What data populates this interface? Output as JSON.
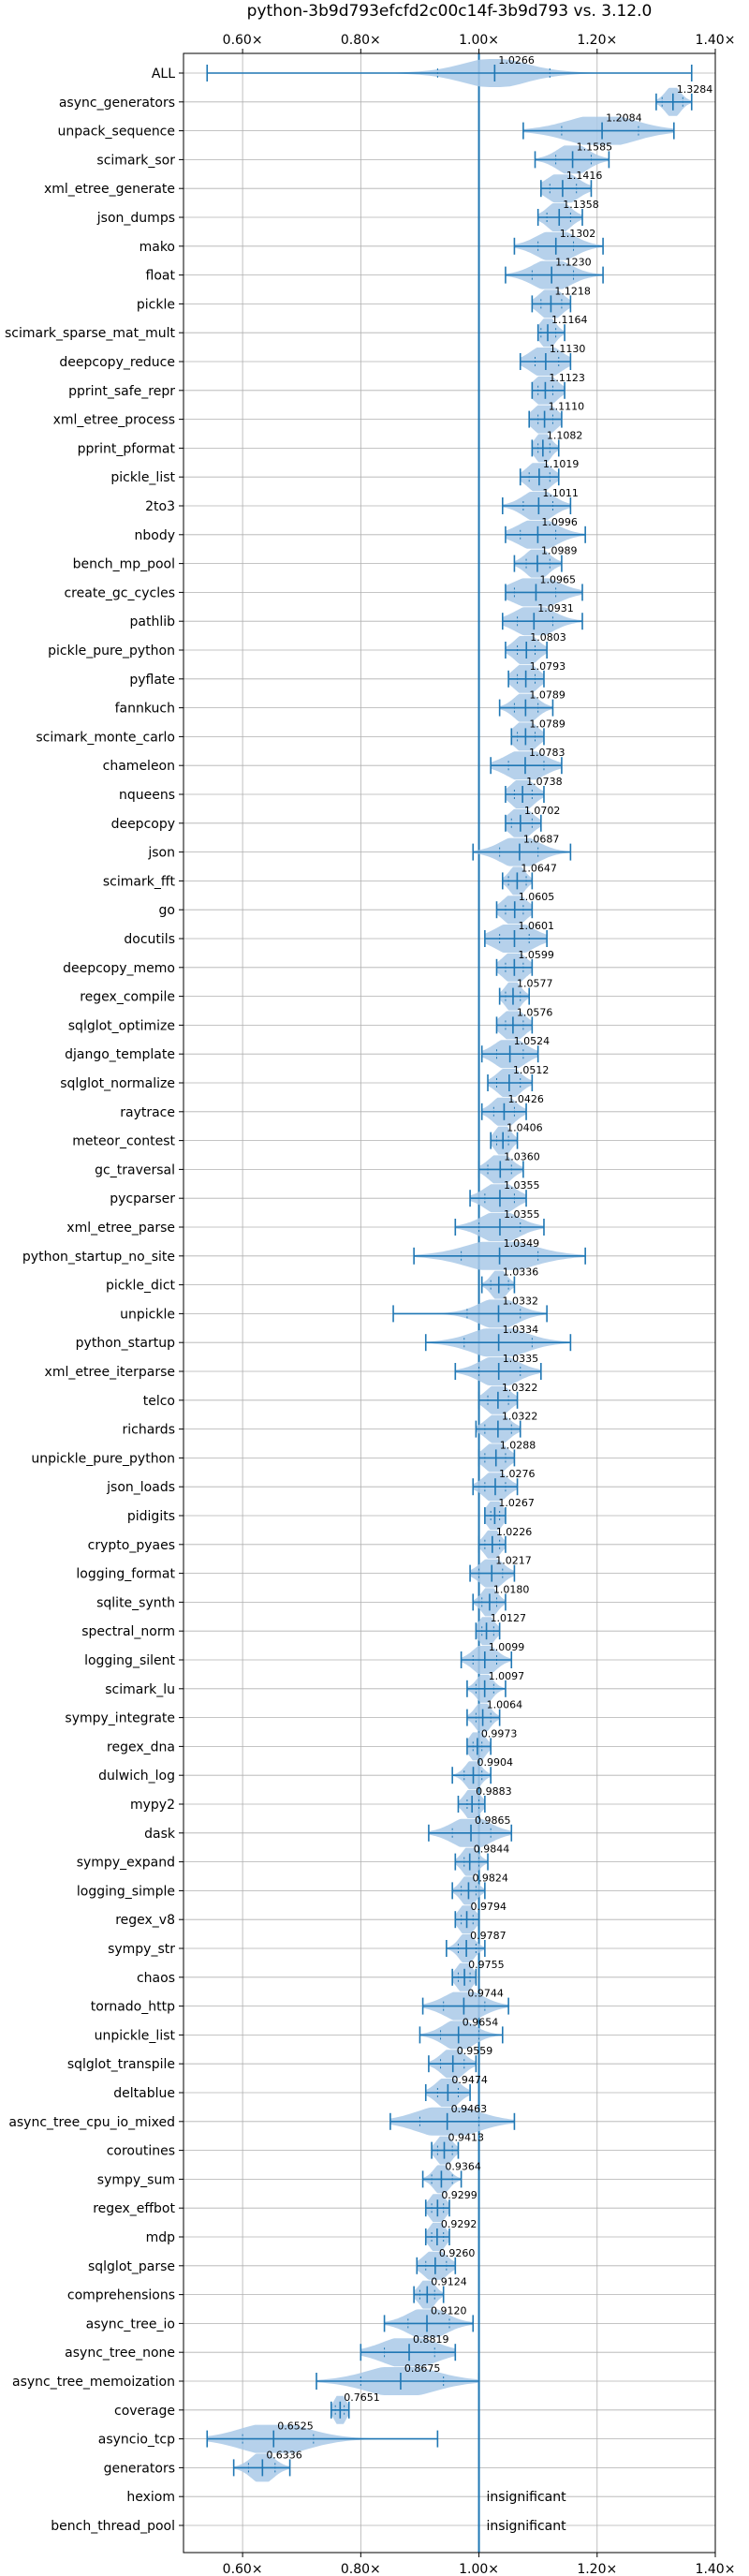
{
  "chart_data": {
    "type": "violin",
    "title": "python-3b9d793efcfd2c00c14f-3b9d793 vs. 3.12.0",
    "orientation": "horizontal",
    "xlim": [
      0.5,
      1.4
    ],
    "xticks": [
      0.6,
      0.8,
      1.0,
      1.2,
      1.4
    ],
    "xtick_labels": [
      "0.60×",
      "0.80×",
      "1.00×",
      "1.20×",
      "1.40×"
    ],
    "xtick_labels_position": "top-and-bottom",
    "reference_line": 1.0,
    "grid": true,
    "colors": {
      "violin": "#a9c9e8",
      "line": "#1f77b4",
      "grid": "#b0b0b0"
    },
    "series": [
      {
        "name": "ALL",
        "median": 1.0266,
        "label": "1.0266",
        "min": 0.54,
        "max": 1.36,
        "q1": 0.93,
        "q3": 1.12,
        "spread": 0.08
      },
      {
        "name": "async_generators",
        "median": 1.3284,
        "label": "1.3284",
        "min": 1.3,
        "max": 1.36,
        "q1": 1.31,
        "q3": 1.345,
        "spread": 0.02
      },
      {
        "name": "unpack_sequence",
        "median": 1.2084,
        "label": "1.2084",
        "min": 1.075,
        "max": 1.33,
        "q1": 1.14,
        "q3": 1.27,
        "spread": 0.09
      },
      {
        "name": "scimark_sor",
        "median": 1.1585,
        "label": "1.1585",
        "min": 1.095,
        "max": 1.22,
        "q1": 1.13,
        "q3": 1.19,
        "spread": 0.04
      },
      {
        "name": "xml_etree_generate",
        "median": 1.1416,
        "label": "1.1416",
        "min": 1.105,
        "max": 1.19,
        "q1": 1.12,
        "q3": 1.165,
        "spread": 0.04
      },
      {
        "name": "json_dumps",
        "median": 1.1358,
        "label": "1.1358",
        "min": 1.1,
        "max": 1.175,
        "q1": 1.115,
        "q3": 1.155,
        "spread": 0.03
      },
      {
        "name": "mako",
        "median": 1.1302,
        "label": "1.1302",
        "min": 1.06,
        "max": 1.21,
        "q1": 1.1,
        "q3": 1.16,
        "spread": 0.05
      },
      {
        "name": "float",
        "median": 1.123,
        "label": "1.1230",
        "min": 1.045,
        "max": 1.21,
        "q1": 1.09,
        "q3": 1.16,
        "spread": 0.05
      },
      {
        "name": "pickle",
        "median": 1.1218,
        "label": "1.1218",
        "min": 1.09,
        "max": 1.155,
        "q1": 1.105,
        "q3": 1.14,
        "spread": 0.03
      },
      {
        "name": "scimark_sparse_mat_mult",
        "median": 1.1164,
        "label": "1.1164",
        "min": 1.1,
        "max": 1.145,
        "q1": 1.105,
        "q3": 1.13,
        "spread": 0.02
      },
      {
        "name": "deepcopy_reduce",
        "median": 1.113,
        "label": "1.1130",
        "min": 1.07,
        "max": 1.155,
        "q1": 1.095,
        "q3": 1.135,
        "spread": 0.04
      },
      {
        "name": "pprint_safe_repr",
        "median": 1.1123,
        "label": "1.1123",
        "min": 1.09,
        "max": 1.145,
        "q1": 1.1,
        "q3": 1.125,
        "spread": 0.03
      },
      {
        "name": "xml_etree_process",
        "median": 1.111,
        "label": "1.1110",
        "min": 1.085,
        "max": 1.14,
        "q1": 1.1,
        "q3": 1.125,
        "spread": 0.03
      },
      {
        "name": "pprint_pformat",
        "median": 1.1082,
        "label": "1.1082",
        "min": 1.09,
        "max": 1.135,
        "q1": 1.1,
        "q3": 1.12,
        "spread": 0.02
      },
      {
        "name": "pickle_list",
        "median": 1.1019,
        "label": "1.1019",
        "min": 1.07,
        "max": 1.135,
        "q1": 1.085,
        "q3": 1.12,
        "spread": 0.03
      },
      {
        "name": "2to3",
        "median": 1.1011,
        "label": "1.1011",
        "min": 1.04,
        "max": 1.155,
        "q1": 1.075,
        "q3": 1.125,
        "spread": 0.04
      },
      {
        "name": "nbody",
        "median": 1.0996,
        "label": "1.0996",
        "min": 1.045,
        "max": 1.18,
        "q1": 1.07,
        "q3": 1.13,
        "spread": 0.05
      },
      {
        "name": "bench_mp_pool",
        "median": 1.0989,
        "label": "1.0989",
        "min": 1.06,
        "max": 1.14,
        "q1": 1.08,
        "q3": 1.12,
        "spread": 0.03
      },
      {
        "name": "create_gc_cycles",
        "median": 1.0965,
        "label": "1.0965",
        "min": 1.045,
        "max": 1.175,
        "q1": 1.06,
        "q3": 1.13,
        "spread": 0.06
      },
      {
        "name": "pathlib",
        "median": 1.0931,
        "label": "1.0931",
        "min": 1.04,
        "max": 1.175,
        "q1": 1.065,
        "q3": 1.125,
        "spread": 0.05
      },
      {
        "name": "pickle_pure_python",
        "median": 1.0803,
        "label": "1.0803",
        "min": 1.045,
        "max": 1.115,
        "q1": 1.065,
        "q3": 1.095,
        "spread": 0.03
      },
      {
        "name": "pyflate",
        "median": 1.0793,
        "label": "1.0793",
        "min": 1.05,
        "max": 1.11,
        "q1": 1.065,
        "q3": 1.095,
        "spread": 0.03
      },
      {
        "name": "fannkuch",
        "median": 1.0789,
        "label": "1.0789",
        "min": 1.035,
        "max": 1.125,
        "q1": 1.06,
        "q3": 1.1,
        "spread": 0.03
      },
      {
        "name": "scimark_monte_carlo",
        "median": 1.0789,
        "label": "1.0789",
        "min": 1.055,
        "max": 1.11,
        "q1": 1.065,
        "q3": 1.095,
        "spread": 0.03
      },
      {
        "name": "chameleon",
        "median": 1.0783,
        "label": "1.0783",
        "min": 1.02,
        "max": 1.14,
        "q1": 1.05,
        "q3": 1.11,
        "spread": 0.05
      },
      {
        "name": "nqueens",
        "median": 1.0738,
        "label": "1.0738",
        "min": 1.045,
        "max": 1.11,
        "q1": 1.06,
        "q3": 1.09,
        "spread": 0.03
      },
      {
        "name": "deepcopy",
        "median": 1.0702,
        "label": "1.0702",
        "min": 1.045,
        "max": 1.105,
        "q1": 1.055,
        "q3": 1.09,
        "spread": 0.03
      },
      {
        "name": "json",
        "median": 1.0687,
        "label": "1.0687",
        "min": 0.99,
        "max": 1.155,
        "q1": 1.035,
        "q3": 1.1,
        "spread": 0.05
      },
      {
        "name": "scimark_fft",
        "median": 1.0647,
        "label": "1.0647",
        "min": 1.04,
        "max": 1.09,
        "q1": 1.05,
        "q3": 1.08,
        "spread": 0.02
      },
      {
        "name": "go",
        "median": 1.0605,
        "label": "1.0605",
        "min": 1.03,
        "max": 1.09,
        "q1": 1.045,
        "q3": 1.075,
        "spread": 0.03
      },
      {
        "name": "docutils",
        "median": 1.0601,
        "label": "1.0601",
        "min": 1.01,
        "max": 1.115,
        "q1": 1.035,
        "q3": 1.085,
        "spread": 0.05
      },
      {
        "name": "deepcopy_memo",
        "median": 1.0599,
        "label": "1.0599",
        "min": 1.03,
        "max": 1.09,
        "q1": 1.045,
        "q3": 1.075,
        "spread": 0.03
      },
      {
        "name": "regex_compile",
        "median": 1.0577,
        "label": "1.0577",
        "min": 1.035,
        "max": 1.085,
        "q1": 1.045,
        "q3": 1.07,
        "spread": 0.02
      },
      {
        "name": "sqlglot_optimize",
        "median": 1.0576,
        "label": "1.0576",
        "min": 1.03,
        "max": 1.09,
        "q1": 1.045,
        "q3": 1.075,
        "spread": 0.03
      },
      {
        "name": "django_template",
        "median": 1.0524,
        "label": "1.0524",
        "min": 1.005,
        "max": 1.1,
        "q1": 1.03,
        "q3": 1.075,
        "spread": 0.04
      },
      {
        "name": "sqlglot_normalize",
        "median": 1.0512,
        "label": "1.0512",
        "min": 1.015,
        "max": 1.09,
        "q1": 1.03,
        "q3": 1.07,
        "spread": 0.03
      },
      {
        "name": "raytrace",
        "median": 1.0426,
        "label": "1.0426",
        "min": 1.005,
        "max": 1.08,
        "q1": 1.025,
        "q3": 1.06,
        "spread": 0.03
      },
      {
        "name": "meteor_contest",
        "median": 1.0406,
        "label": "1.0406",
        "min": 1.02,
        "max": 1.065,
        "q1": 1.03,
        "q3": 1.05,
        "spread": 0.02
      },
      {
        "name": "gc_traversal",
        "median": 1.036,
        "label": "1.0360",
        "min": 1.0,
        "max": 1.075,
        "q1": 1.015,
        "q3": 1.055,
        "spread": 0.03
      },
      {
        "name": "pycparser",
        "median": 1.0355,
        "label": "1.0355",
        "min": 0.985,
        "max": 1.08,
        "q1": 1.01,
        "q3": 1.06,
        "spread": 0.04
      },
      {
        "name": "xml_etree_parse",
        "median": 1.0355,
        "label": "1.0355",
        "min": 0.96,
        "max": 1.11,
        "q1": 1.0,
        "q3": 1.07,
        "spread": 0.05
      },
      {
        "name": "python_startup_no_site",
        "median": 1.0349,
        "label": "1.0349",
        "min": 0.89,
        "max": 1.18,
        "q1": 0.97,
        "q3": 1.1,
        "spread": 0.09
      },
      {
        "name": "pickle_dict",
        "median": 1.0336,
        "label": "1.0336",
        "min": 1.005,
        "max": 1.06,
        "q1": 1.02,
        "q3": 1.05,
        "spread": 0.02
      },
      {
        "name": "unpickle",
        "median": 1.0332,
        "label": "1.0332",
        "min": 0.855,
        "max": 1.115,
        "q1": 0.98,
        "q3": 1.07,
        "spread": 0.05
      },
      {
        "name": "python_startup",
        "median": 1.0334,
        "label": "1.0334",
        "min": 0.91,
        "max": 1.155,
        "q1": 0.975,
        "q3": 1.09,
        "spread": 0.07
      },
      {
        "name": "xml_etree_iterparse",
        "median": 1.0335,
        "label": "1.0335",
        "min": 0.96,
        "max": 1.105,
        "q1": 1.0,
        "q3": 1.07,
        "spread": 0.05
      },
      {
        "name": "telco",
        "median": 1.0322,
        "label": "1.0322",
        "min": 1.0,
        "max": 1.065,
        "q1": 1.015,
        "q3": 1.05,
        "spread": 0.03
      },
      {
        "name": "richards",
        "median": 1.0322,
        "label": "1.0322",
        "min": 0.995,
        "max": 1.07,
        "q1": 1.01,
        "q3": 1.055,
        "spread": 0.03
      },
      {
        "name": "unpickle_pure_python",
        "median": 1.0288,
        "label": "1.0288",
        "min": 1.0,
        "max": 1.06,
        "q1": 1.01,
        "q3": 1.045,
        "spread": 0.03
      },
      {
        "name": "json_loads",
        "median": 1.0276,
        "label": "1.0276",
        "min": 0.99,
        "max": 1.065,
        "q1": 1.01,
        "q3": 1.045,
        "spread": 0.03
      },
      {
        "name": "pidigits",
        "median": 1.0267,
        "label": "1.0267",
        "min": 1.01,
        "max": 1.045,
        "q1": 1.02,
        "q3": 1.035,
        "spread": 0.02
      },
      {
        "name": "crypto_pyaes",
        "median": 1.0226,
        "label": "1.0226",
        "min": 1.0,
        "max": 1.045,
        "q1": 1.01,
        "q3": 1.035,
        "spread": 0.02
      },
      {
        "name": "logging_format",
        "median": 1.0217,
        "label": "1.0217",
        "min": 0.985,
        "max": 1.06,
        "q1": 1.0,
        "q3": 1.04,
        "spread": 0.03
      },
      {
        "name": "sqlite_synth",
        "median": 1.018,
        "label": "1.0180",
        "min": 0.99,
        "max": 1.045,
        "q1": 1.005,
        "q3": 1.03,
        "spread": 0.02
      },
      {
        "name": "spectral_norm",
        "median": 1.0127,
        "label": "1.0127",
        "min": 0.995,
        "max": 1.035,
        "q1": 1.005,
        "q3": 1.025,
        "spread": 0.02
      },
      {
        "name": "logging_silent",
        "median": 1.0099,
        "label": "1.0099",
        "min": 0.97,
        "max": 1.055,
        "q1": 0.99,
        "q3": 1.03,
        "spread": 0.03
      },
      {
        "name": "scimark_lu",
        "median": 1.0097,
        "label": "1.0097",
        "min": 0.98,
        "max": 1.045,
        "q1": 0.995,
        "q3": 1.025,
        "spread": 0.02
      },
      {
        "name": "sympy_integrate",
        "median": 1.0064,
        "label": "1.0064",
        "min": 0.98,
        "max": 1.035,
        "q1": 0.995,
        "q3": 1.02,
        "spread": 0.02
      },
      {
        "name": "regex_dna",
        "median": 0.9973,
        "label": "0.9973",
        "min": 0.98,
        "max": 1.02,
        "q1": 0.99,
        "q3": 1.005,
        "spread": 0.02
      },
      {
        "name": "dulwich_log",
        "median": 0.9904,
        "label": "0.9904",
        "min": 0.955,
        "max": 1.02,
        "q1": 0.975,
        "q3": 1.005,
        "spread": 0.02
      },
      {
        "name": "mypy2",
        "median": 0.9883,
        "label": "0.9883",
        "min": 0.965,
        "max": 1.01,
        "q1": 0.98,
        "q3": 1.0,
        "spread": 0.02
      },
      {
        "name": "dask",
        "median": 0.9865,
        "label": "0.9865",
        "min": 0.915,
        "max": 1.055,
        "q1": 0.955,
        "q3": 1.02,
        "spread": 0.05
      },
      {
        "name": "sympy_expand",
        "median": 0.9844,
        "label": "0.9844",
        "min": 0.96,
        "max": 1.015,
        "q1": 0.975,
        "q3": 1.0,
        "spread": 0.02
      },
      {
        "name": "logging_simple",
        "median": 0.9824,
        "label": "0.9824",
        "min": 0.955,
        "max": 1.01,
        "q1": 0.97,
        "q3": 0.995,
        "spread": 0.02
      },
      {
        "name": "regex_v8",
        "median": 0.9794,
        "label": "0.9794",
        "min": 0.96,
        "max": 1.0,
        "q1": 0.97,
        "q3": 0.99,
        "spread": 0.02
      },
      {
        "name": "sympy_str",
        "median": 0.9787,
        "label": "0.9787",
        "min": 0.945,
        "max": 1.01,
        "q1": 0.965,
        "q3": 0.995,
        "spread": 0.02
      },
      {
        "name": "chaos",
        "median": 0.9755,
        "label": "0.9755",
        "min": 0.955,
        "max": 0.995,
        "q1": 0.965,
        "q3": 0.985,
        "spread": 0.02
      },
      {
        "name": "tornado_http",
        "median": 0.9744,
        "label": "0.9744",
        "min": 0.905,
        "max": 1.05,
        "q1": 0.94,
        "q3": 1.01,
        "spread": 0.05
      },
      {
        "name": "unpickle_list",
        "median": 0.9654,
        "label": "0.9654",
        "min": 0.9,
        "max": 1.04,
        "q1": 0.935,
        "q3": 1.0,
        "spread": 0.04
      },
      {
        "name": "sqlglot_transpile",
        "median": 0.9559,
        "label": "0.9559",
        "min": 0.915,
        "max": 0.995,
        "q1": 0.935,
        "q3": 0.975,
        "spread": 0.03
      },
      {
        "name": "deltablue",
        "median": 0.9474,
        "label": "0.9474",
        "min": 0.91,
        "max": 0.985,
        "q1": 0.93,
        "q3": 0.965,
        "spread": 0.03
      },
      {
        "name": "async_tree_cpu_io_mixed",
        "median": 0.9463,
        "label": "0.9463",
        "min": 0.85,
        "max": 1.06,
        "q1": 0.9,
        "q3": 1.0,
        "spread": 0.08
      },
      {
        "name": "coroutines",
        "median": 0.9413,
        "label": "0.9413",
        "min": 0.92,
        "max": 0.965,
        "q1": 0.93,
        "q3": 0.955,
        "spread": 0.02
      },
      {
        "name": "sympy_sum",
        "median": 0.9364,
        "label": "0.9364",
        "min": 0.905,
        "max": 0.97,
        "q1": 0.92,
        "q3": 0.955,
        "spread": 0.02
      },
      {
        "name": "regex_effbot",
        "median": 0.9299,
        "label": "0.9299",
        "min": 0.91,
        "max": 0.95,
        "q1": 0.92,
        "q3": 0.94,
        "spread": 0.02
      },
      {
        "name": "mdp",
        "median": 0.9292,
        "label": "0.9292",
        "min": 0.91,
        "max": 0.95,
        "q1": 0.92,
        "q3": 0.94,
        "spread": 0.02
      },
      {
        "name": "sqlglot_parse",
        "median": 0.926,
        "label": "0.9260",
        "min": 0.895,
        "max": 0.96,
        "q1": 0.91,
        "q3": 0.945,
        "spread": 0.03
      },
      {
        "name": "comprehensions",
        "median": 0.9124,
        "label": "0.9124",
        "min": 0.89,
        "max": 0.94,
        "q1": 0.9,
        "q3": 0.925,
        "spread": 0.02
      },
      {
        "name": "async_tree_io",
        "median": 0.912,
        "label": "0.9120",
        "min": 0.84,
        "max": 0.99,
        "q1": 0.88,
        "q3": 0.95,
        "spread": 0.05
      },
      {
        "name": "async_tree_none",
        "median": 0.8819,
        "label": "0.8819",
        "min": 0.8,
        "max": 0.96,
        "q1": 0.84,
        "q3": 0.925,
        "spread": 0.07
      },
      {
        "name": "async_tree_memoization",
        "median": 0.8675,
        "label": "0.8675",
        "min": 0.725,
        "max": 1.0,
        "q1": 0.8,
        "q3": 0.94,
        "spread": 0.09
      },
      {
        "name": "coverage",
        "median": 0.7651,
        "label": "0.7651",
        "min": 0.75,
        "max": 0.78,
        "q1": 0.757,
        "q3": 0.772,
        "spread": 0.015
      },
      {
        "name": "asyncio_tcp",
        "median": 0.6525,
        "label": "0.6525",
        "min": 0.54,
        "max": 0.93,
        "q1": 0.6,
        "q3": 0.72,
        "spread": 0.09
      },
      {
        "name": "generators",
        "median": 0.6336,
        "label": "0.6336",
        "min": 0.585,
        "max": 0.68,
        "q1": 0.61,
        "q3": 0.655,
        "spread": 0.03
      },
      {
        "name": "hexiom",
        "median": null,
        "label": "insignificant"
      },
      {
        "name": "bench_thread_pool",
        "median": null,
        "label": "insignificant"
      }
    ]
  }
}
